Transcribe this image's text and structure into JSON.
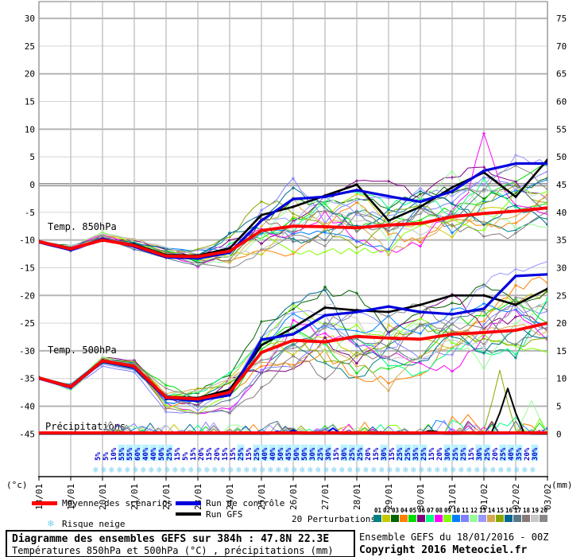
{
  "footer": {
    "title": "Diagramme des ensembles GEFS sur 384h : 47.8N 22.3E",
    "subtitle": "Températures 850hPa et 500hPa (°C) , précipitations (mm)",
    "run_info": "Ensemble GEFS du 18/01/2016 - 00Z",
    "copyright": "Copyright 2016 Meteociel.fr"
  },
  "legend": {
    "mean": {
      "label": "Moyenne des scénarios",
      "color": "#ff0000"
    },
    "control": {
      "label": "Run de contrôle",
      "color": "#0000dd"
    },
    "gfs": {
      "label": "Run GFS",
      "color": "#000000"
    },
    "perturbations_label": "20 Perturbations",
    "perturbation_ids": [
      "01",
      "02",
      "03",
      "04",
      "05",
      "06",
      "07",
      "08",
      "09",
      "10",
      "11",
      "12",
      "13",
      "14",
      "15",
      "16",
      "17",
      "18",
      "19",
      "20"
    ],
    "snow_label": "Risque neige",
    "snowflake_color": "#7ed2f2"
  },
  "chart_data": {
    "type": "line",
    "subtype": "ensemble-spaghetti",
    "x_labels": [
      "18/01",
      "19/01",
      "20/01",
      "21/01",
      "22/01",
      "23/01",
      "24/01",
      "25/01",
      "26/01",
      "27/01",
      "28/01",
      "29/01",
      "30/01",
      "31/01",
      "01/02",
      "02/02",
      "03/02"
    ],
    "x_step_hours": 6,
    "y_left": {
      "unit": "(°c)",
      "min": -45,
      "max": 30,
      "step": 5,
      "ticks": [
        30,
        25,
        20,
        15,
        10,
        5,
        0,
        -5,
        -10,
        -15,
        -20,
        -25,
        -30,
        -35,
        -40,
        -45
      ]
    },
    "y_right": {
      "unit": "(mm)",
      "min": 0,
      "max": 75,
      "step": 5,
      "ticks": [
        75,
        70,
        65,
        60,
        55,
        50,
        45,
        40,
        35,
        30,
        25,
        20,
        15,
        10,
        5,
        0
      ]
    },
    "panel_labels": {
      "t850": "Temp. 850hPa",
      "t500": "Temp. 500hPa",
      "precip": "Précipitations"
    },
    "t850": {
      "mean": [
        -10.3,
        -11.6,
        -10.0,
        -11.0,
        -12.9,
        -13.0,
        -12.0,
        -8.3,
        -7.5,
        -7.6,
        -7.8,
        -7.3,
        -7.0,
        -5.8,
        -5.2,
        -4.8,
        -4.2
      ],
      "control": [
        -10.4,
        -11.8,
        -9.8,
        -11.2,
        -13.1,
        -13.3,
        -12.3,
        -6.5,
        -2.6,
        -2.2,
        -1.0,
        -2.1,
        -3.1,
        -1.2,
        2.5,
        3.8,
        3.8
      ],
      "gfs": [
        -10.2,
        -11.5,
        -10.1,
        -10.8,
        -12.7,
        -12.8,
        -11.5,
        -5.5,
        -4.0,
        -2.0,
        0.0,
        -6.5,
        -4.0,
        -0.5,
        2.2,
        -2.2,
        4.5
      ],
      "env_lo": [
        -11,
        -13,
        -11,
        -12.5,
        -14.2,
        -15.5,
        -16,
        -14.5,
        -14,
        -13,
        -13,
        -14,
        -13,
        -12,
        -12,
        -10,
        -9
      ],
      "env_hi": [
        -9.5,
        -10.5,
        -8.5,
        -9.5,
        -11,
        -11,
        -8,
        -2,
        1,
        1,
        2,
        1,
        2,
        3,
        4,
        5,
        5
      ]
    },
    "t500": {
      "mean": [
        -34.9,
        -36.5,
        -31.8,
        -32.8,
        -38.4,
        -38.7,
        -37.5,
        -30.3,
        -28.1,
        -28.4,
        -27.4,
        -27.7,
        -27.9,
        -27.0,
        -26.7,
        -26.3,
        -25.0
      ],
      "control": [
        -35.0,
        -36.6,
        -31.9,
        -33.0,
        -38.6,
        -39.0,
        -38.0,
        -28.0,
        -27.0,
        -23.6,
        -23.0,
        -22.0,
        -23.0,
        -23.4,
        -22.4,
        -16.5,
        -16.2
      ],
      "gfs": [
        -34.8,
        -36.4,
        -31.7,
        -32.9,
        -38.3,
        -38.5,
        -37.0,
        -29.0,
        -25.8,
        -22.2,
        -22.7,
        -23.0,
        -21.7,
        -20.0,
        -20.0,
        -21.7,
        -18.8
      ],
      "env_lo": [
        -36,
        -38,
        -33,
        -34,
        -41,
        -42,
        -41,
        -37,
        -35,
        -35.5,
        -37,
        -38,
        -36,
        -34,
        -35,
        -33,
        -32
      ],
      "env_hi": [
        -34,
        -35.5,
        -30.5,
        -31.5,
        -36,
        -36,
        -33,
        -25,
        -20,
        -19,
        -20,
        -21,
        -21,
        -19,
        -16,
        -15,
        -14
      ]
    },
    "precip": {
      "mean_mm": 0.2,
      "gfs_spike": {
        "day": 14.75,
        "mm": 8.2
      },
      "member_spikes": [
        {
          "member": 14,
          "day": 14.5,
          "mm": 11.5
        },
        {
          "member": 11,
          "day": 15.5,
          "mm": 6.0
        },
        {
          "member": 3,
          "day": 13.5,
          "mm": 3.5
        },
        {
          "member": 6,
          "day": 15.0,
          "mm": 3.0
        }
      ]
    },
    "snow_risk_pct": [
      5,
      5,
      10,
      55,
      55,
      60,
      40,
      40,
      50,
      25,
      15,
      5,
      15,
      20,
      15,
      20,
      15,
      15,
      25,
      15,
      25,
      40,
      40,
      50,
      45,
      50,
      50,
      30,
      25,
      30,
      15,
      30,
      25,
      25,
      20,
      15,
      30,
      15,
      25,
      25,
      35,
      25,
      15,
      20,
      30,
      25,
      25,
      15,
      30,
      25,
      20,
      25,
      40,
      35,
      20,
      30
    ],
    "snow_risk_start_day": 1.85,
    "snow_pct_color": "#0000cc",
    "snow_pct_highlight": "#b8f2ff",
    "members": {
      "count": 20,
      "colors": [
        "#008080",
        "#c8c800",
        "#006400",
        "#ff8000",
        "#00dc00",
        "#800080",
        "#00ff80",
        "#ff00ff",
        "#80ff00",
        "#0080ff",
        "#8080ff",
        "#98fb98",
        "#9898ff",
        "#d8a850",
        "#88a800",
        "#006890",
        "#587888",
        "#887878",
        "#c8c8c8",
        "#888888"
      ]
    }
  }
}
